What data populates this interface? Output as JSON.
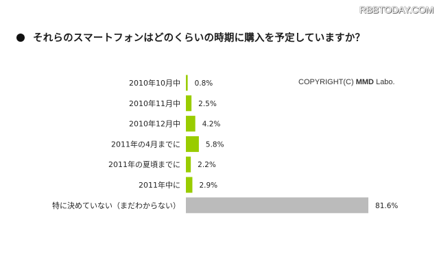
{
  "watermark": "RBBTODAY.COM",
  "title": "それらのスマートフォンはどのくらいの時期に購入を予定していますか？",
  "copyright": {
    "prefix": "COPYRIGHT(C) ",
    "brand": "MMD",
    "suffix": " Labo."
  },
  "colors": {
    "accent_bar": "#99cc00",
    "muted_bar": "#bbbbbb"
  },
  "chart_data": {
    "type": "bar",
    "orientation": "horizontal",
    "title": "それらのスマートフォンはどのくらいの時期に購入を予定していますか？",
    "categories": [
      "2010年10月中",
      "2010年11月中",
      "2010年12月中",
      "2011年の4月までに",
      "2011年の夏頃までに",
      "2011年中に",
      "特に決めていない（まだわからない）"
    ],
    "values": [
      0.8,
      2.5,
      4.2,
      5.8,
      2.2,
      2.9,
      81.6
    ],
    "value_labels": [
      "0.8%",
      "2.5%",
      "4.2%",
      "5.8%",
      "2.2%",
      "2.9%",
      "81.6%"
    ],
    "unit": "%",
    "xlim": [
      0,
      100
    ],
    "grid": false,
    "xlabel": "",
    "ylabel": ""
  }
}
